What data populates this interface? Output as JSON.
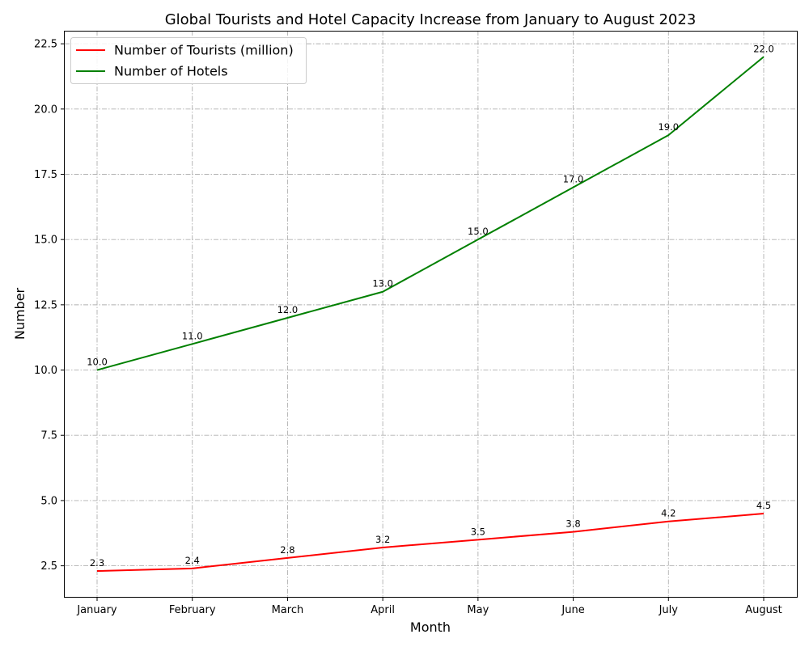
{
  "chart_data": {
    "type": "line",
    "title": "Global Tourists and Hotel Capacity Increase from January to August 2023",
    "xlabel": "Month",
    "ylabel": "Number",
    "categories": [
      "January",
      "February",
      "March",
      "April",
      "May",
      "June",
      "July",
      "August"
    ],
    "series": [
      {
        "name": "Number of Tourists (million)",
        "color": "#ff0000",
        "values": [
          2.3,
          2.4,
          2.8,
          3.2,
          3.5,
          3.8,
          4.2,
          4.5
        ],
        "labels": [
          "2.3",
          "2.4",
          "2.8",
          "3.2",
          "3.5",
          "3.8",
          "4.2",
          "4.5"
        ]
      },
      {
        "name": "Number of Hotels",
        "color": "#008000",
        "values": [
          10,
          11,
          12,
          13,
          15,
          17,
          19,
          22
        ],
        "labels": [
          "10.0",
          "11.0",
          "12.0",
          "13.0",
          "15.0",
          "17.0",
          "19.0",
          "22.0"
        ]
      }
    ],
    "ylim": [
      1.31,
      23.0
    ],
    "yticks": [
      2.5,
      5.0,
      7.5,
      10.0,
      12.5,
      15.0,
      17.5,
      20.0,
      22.5
    ],
    "ytick_labels": [
      "2.5",
      "5.0",
      "7.5",
      "10.0",
      "12.5",
      "15.0",
      "17.5",
      "20.0",
      "22.5"
    ],
    "grid": true,
    "legend_position": "top-left"
  }
}
